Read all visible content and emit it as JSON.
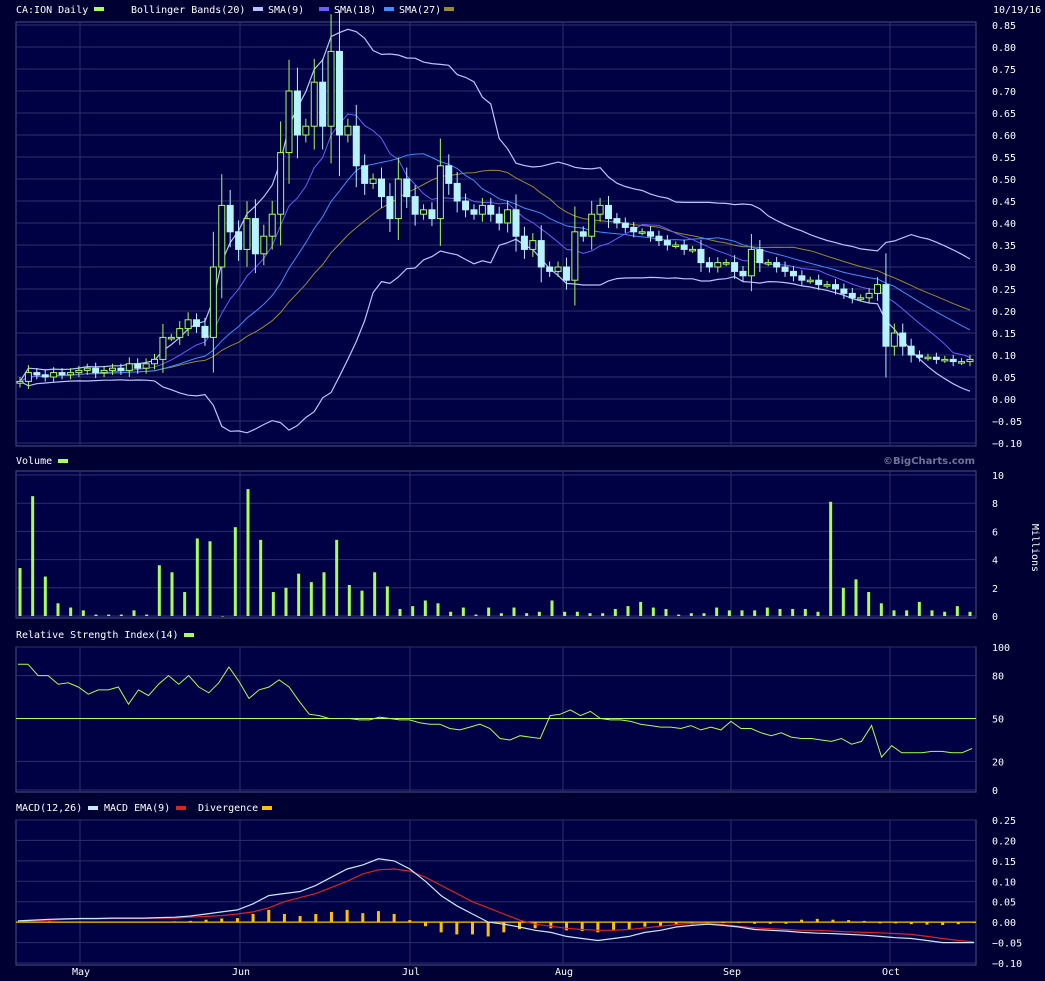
{
  "header": {
    "symbol": "CA:ION Daily",
    "indicators": [
      "Bollinger Bands(20)",
      "SMA(9)",
      "SMA(18)",
      "SMA(27)"
    ],
    "date": "10/19/16",
    "watermark": "©BigCharts.com"
  },
  "colors": {
    "background": "#000033",
    "panel": "#000044",
    "grid": "#2b2f6b",
    "up_candle": "#a6ff52",
    "down_candle": "#b7f2ff",
    "volume": "#a6ff52",
    "bollinger": "#b9c3ff",
    "sma9": "#6f59ff",
    "sma18": "#3a8fff",
    "sma27": "#9a8a2a",
    "rsi": "#a6ff52",
    "macd": "#c8e8ff",
    "macd_ema": "#dd2222",
    "divergence": "#ffc000"
  },
  "x_axis": {
    "labels": [
      "May",
      "Jun",
      "Jul",
      "Aug",
      "Sep",
      "Oct"
    ]
  },
  "chart_data": [
    {
      "type": "candlestick",
      "name": "price",
      "ylim": [
        -0.1,
        0.85
      ],
      "yticks": [
        "0.85",
        "0.80",
        "0.75",
        "0.70",
        "0.65",
        "0.60",
        "0.55",
        "0.50",
        "0.45",
        "0.40",
        "0.35",
        "0.30",
        "0.25",
        "0.20",
        "0.15",
        "0.10",
        "0.05",
        "0.00",
        "−0.05",
        "−0.10"
      ],
      "close": [
        0.04,
        0.06,
        0.055,
        0.05,
        0.06,
        0.055,
        0.06,
        0.065,
        0.07,
        0.06,
        0.065,
        0.07,
        0.065,
        0.08,
        0.07,
        0.08,
        0.09,
        0.14,
        0.14,
        0.16,
        0.18,
        0.165,
        0.14,
        0.3,
        0.44,
        0.38,
        0.34,
        0.41,
        0.33,
        0.37,
        0.42,
        0.56,
        0.7,
        0.6,
        0.62,
        0.72,
        0.62,
        0.79,
        0.6,
        0.62,
        0.53,
        0.49,
        0.5,
        0.46,
        0.41,
        0.5,
        0.46,
        0.42,
        0.43,
        0.41,
        0.53,
        0.49,
        0.45,
        0.43,
        0.42,
        0.44,
        0.42,
        0.4,
        0.43,
        0.37,
        0.34,
        0.36,
        0.3,
        0.29,
        0.3,
        0.27,
        0.38,
        0.37,
        0.42,
        0.44,
        0.41,
        0.4,
        0.39,
        0.38,
        0.38,
        0.37,
        0.36,
        0.35,
        0.35,
        0.34,
        0.34,
        0.31,
        0.3,
        0.31,
        0.31,
        0.29,
        0.28,
        0.34,
        0.31,
        0.31,
        0.3,
        0.29,
        0.28,
        0.27,
        0.27,
        0.26,
        0.26,
        0.25,
        0.24,
        0.23,
        0.23,
        0.24,
        0.26,
        0.12,
        0.15,
        0.12,
        0.1,
        0.095,
        0.095,
        0.09,
        0.09,
        0.085,
        0.085,
        0.09
      ],
      "overlays": [
        "Bollinger Bands(20)",
        "SMA(9)",
        "SMA(18)",
        "SMA(27)"
      ]
    },
    {
      "type": "bar",
      "name": "Volume",
      "unit": "Millions",
      "ylim": [
        0,
        10
      ],
      "yticks": [
        "10",
        "8",
        "6",
        "4",
        "2",
        "0"
      ],
      "values": [
        3.4,
        8.5,
        2.8,
        0.9,
        0.6,
        0.4,
        0.1,
        0.1,
        0.1,
        0.4,
        0.1,
        3.6,
        3.1,
        1.7,
        5.5,
        5.3,
        0,
        6.3,
        9.0,
        5.4,
        1.7,
        2.0,
        3.0,
        2.4,
        3.1,
        5.4,
        2.2,
        1.8,
        3.1,
        2.1,
        0.5,
        0.7,
        1.1,
        0.9,
        0.3,
        0.6,
        0.1,
        0.6,
        0.2,
        0.6,
        0.2,
        0.3,
        1.1,
        0.3,
        0.3,
        0.2,
        0.2,
        0.5,
        0.7,
        1.0,
        0.6,
        0.5,
        0.1,
        0.2,
        0.2,
        0.6,
        0.4,
        0.4,
        0.4,
        0.6,
        0.5,
        0.5,
        0.5,
        0.3,
        8.1,
        2.0,
        2.6,
        1.7,
        0.9,
        0.4,
        0.4,
        1.0,
        0.4,
        0.3,
        0.7,
        0.3
      ]
    },
    {
      "type": "line",
      "name": "Relative Strength Index(14)",
      "ylim": [
        0,
        100
      ],
      "yticks": [
        "100",
        "80",
        "50",
        "20",
        "0"
      ],
      "reference_line": 50,
      "values": [
        88,
        88,
        80,
        80,
        74,
        75,
        72,
        67,
        70,
        70,
        72,
        60,
        70,
        66,
        74,
        80,
        74,
        80,
        72,
        68,
        75,
        86,
        76,
        64,
        70,
        72,
        77,
        72,
        62,
        53,
        52,
        50,
        50,
        50,
        49,
        49,
        51,
        50,
        49,
        49,
        47,
        46,
        46,
        43,
        42,
        44,
        46,
        43,
        36,
        35,
        38,
        37,
        36,
        52,
        53,
        56,
        52,
        55,
        50,
        49,
        49,
        48,
        46,
        45,
        44,
        44,
        43,
        45,
        42,
        44,
        42,
        48,
        43,
        43,
        40,
        38,
        40,
        37,
        36,
        36,
        35,
        34,
        36,
        32,
        34,
        45,
        23,
        31,
        26,
        26,
        26,
        27,
        27,
        26,
        26,
        29
      ]
    },
    {
      "type": "line",
      "name": "MACD(12,26)",
      "ylim": [
        -0.1,
        0.25
      ],
      "yticks": [
        "0.25",
        "0.20",
        "0.15",
        "0.10",
        "0.05",
        "0.00",
        "−0.05",
        "−0.10"
      ],
      "series": [
        {
          "name": "MACD(12,26)",
          "values": [
            0.003,
            0.005,
            0.007,
            0.008,
            0.009,
            0.009,
            0.01,
            0.01,
            0.01,
            0.011,
            0.012,
            0.015,
            0.02,
            0.025,
            0.03,
            0.045,
            0.065,
            0.07,
            0.075,
            0.09,
            0.11,
            0.13,
            0.14,
            0.155,
            0.15,
            0.13,
            0.1,
            0.065,
            0.04,
            0.02,
            0.0,
            -0.005,
            -0.012,
            -0.02,
            -0.025,
            -0.035,
            -0.04,
            -0.045,
            -0.04,
            -0.035,
            -0.025,
            -0.02,
            -0.012,
            -0.008,
            -0.005,
            -0.008,
            -0.012,
            -0.018,
            -0.02,
            -0.022,
            -0.025,
            -0.027,
            -0.028,
            -0.03,
            -0.032,
            -0.035,
            -0.038,
            -0.04,
            -0.045,
            -0.05,
            -0.05,
            -0.05
          ]
        },
        {
          "name": "MACD EMA(9)",
          "values": [
            0.002,
            0.004,
            0.005,
            0.007,
            0.008,
            0.008,
            0.009,
            0.009,
            0.009,
            0.01,
            0.01,
            0.012,
            0.014,
            0.016,
            0.02,
            0.025,
            0.035,
            0.05,
            0.06,
            0.07,
            0.085,
            0.1,
            0.118,
            0.128,
            0.13,
            0.125,
            0.11,
            0.09,
            0.07,
            0.05,
            0.035,
            0.02,
            0.005,
            -0.005,
            -0.01,
            -0.015,
            -0.018,
            -0.02,
            -0.02,
            -0.018,
            -0.014,
            -0.01,
            -0.006,
            -0.003,
            -0.003,
            -0.006,
            -0.01,
            -0.014,
            -0.016,
            -0.018,
            -0.02,
            -0.02,
            -0.022,
            -0.024,
            -0.025,
            -0.026,
            -0.028,
            -0.03,
            -0.035,
            -0.04,
            -0.045,
            -0.048
          ]
        }
      ],
      "divergence": [
        0.001,
        0.001,
        0.002,
        0.001,
        0.001,
        0.001,
        0.001,
        0.001,
        0.001,
        0.001,
        0.002,
        0.003,
        0.006,
        0.009,
        0.01,
        0.02,
        0.03,
        0.02,
        0.015,
        0.02,
        0.025,
        0.03,
        0.022,
        0.027,
        0.02,
        0.005,
        -0.01,
        -0.025,
        -0.03,
        -0.03,
        -0.035,
        -0.025,
        -0.017,
        -0.015,
        -0.015,
        -0.02,
        -0.022,
        -0.025,
        -0.02,
        -0.017,
        -0.011,
        -0.01,
        -0.006,
        -0.005,
        -0.002,
        -0.002,
        -0.002,
        -0.004,
        -0.004,
        -0.004,
        0.006,
        0.008,
        0.006,
        0.005,
        0.003,
        -0.003,
        -0.003,
        -0.005,
        -0.006,
        -0.007,
        -0.005,
        -0.002
      ]
    }
  ],
  "panels": {
    "volume": {
      "title": "Volume",
      "unit": "Millions"
    },
    "rsi": {
      "title": "Relative Strength Index(14)"
    },
    "macd": {
      "title": "MACD(12,26)",
      "legend": [
        "MACD EMA(9)",
        "Divergence"
      ]
    }
  }
}
